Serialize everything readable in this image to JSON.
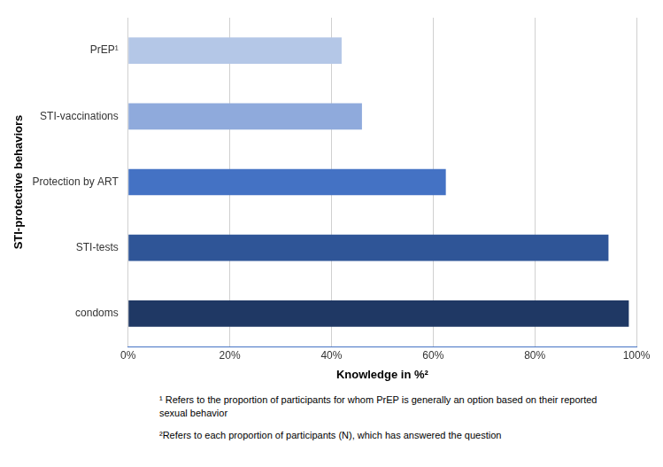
{
  "chart_data": {
    "type": "bar",
    "orientation": "horizontal",
    "categories": [
      "PrEP¹",
      "STI-vaccinations",
      "Protection by ART",
      "STI-tests",
      "condoms"
    ],
    "values": [
      42,
      46,
      62.5,
      94.5,
      98.5
    ],
    "colors": [
      "#b4c7e7",
      "#8faadc",
      "#4472c4",
      "#2f5597",
      "#1f3864"
    ],
    "x_label": "Knowledge in %²",
    "y_label": "STI-protective behaviors",
    "xlim": [
      0,
      100
    ],
    "xticks": [
      {
        "value": 0,
        "label": "0%"
      },
      {
        "value": 20,
        "label": "20%"
      },
      {
        "value": 40,
        "label": "40%"
      },
      {
        "value": 60,
        "label": "60%"
      },
      {
        "value": 80,
        "label": "80%"
      },
      {
        "value": 100,
        "label": "100%"
      }
    ],
    "grid": true,
    "annotations": [
      "¹ Refers to the proportion of participants for whom PrEP is generally an option based on their reported sexual behavior",
      "²Refers to each proportion of participants (N), which has answered the question"
    ]
  }
}
